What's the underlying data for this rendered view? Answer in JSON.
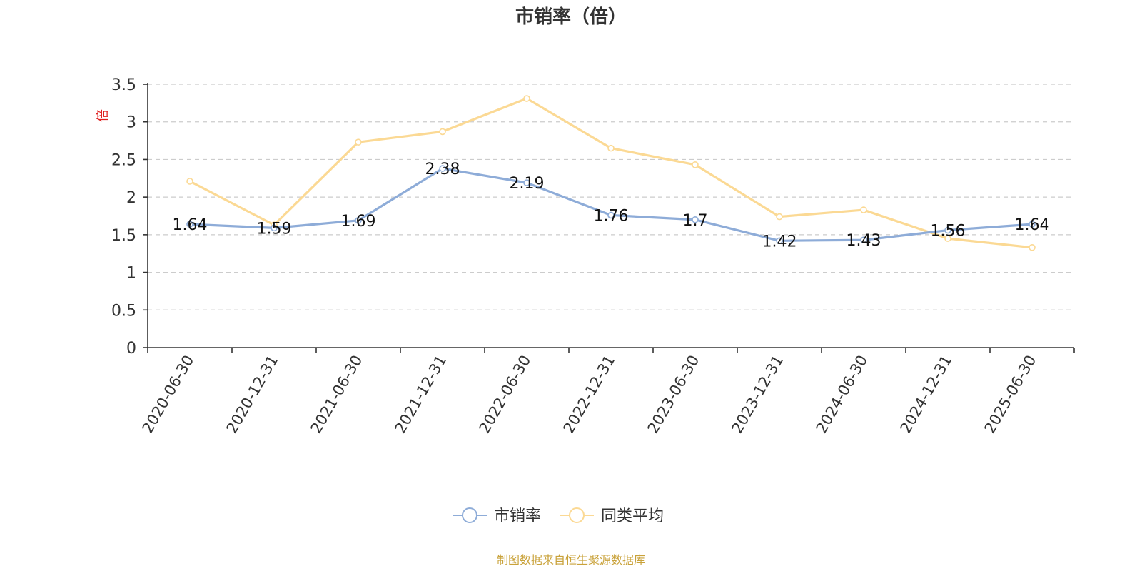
{
  "chart_data": {
    "type": "line",
    "title": "市销率（倍）",
    "ylabel": "倍",
    "ylim": [
      0,
      3.5
    ],
    "yticks": [
      "0",
      "0.5",
      "1",
      "1.5",
      "2",
      "2.5",
      "3",
      "3.5"
    ],
    "grid": true,
    "legend_position": "bottom-center",
    "categories": [
      "2020-06-30",
      "2020-12-31",
      "2021-06-30",
      "2021-12-31",
      "2022-06-30",
      "2022-12-31",
      "2023-06-30",
      "2023-12-31",
      "2024-06-30",
      "2024-12-31",
      "2025-06-30"
    ],
    "series": [
      {
        "name": "市销率",
        "color": "#8eacd8",
        "values": [
          1.64,
          1.59,
          1.69,
          2.38,
          2.19,
          1.76,
          1.7,
          1.42,
          1.43,
          1.56,
          1.64
        ],
        "labels": [
          "1.64",
          "1.59",
          "1.69",
          "2.38",
          "2.19",
          "1.76",
          "1.7",
          "1.42",
          "1.43",
          "1.56",
          "1.64"
        ]
      },
      {
        "name": "同类平均",
        "color": "#fbd994",
        "values": [
          2.21,
          1.63,
          2.73,
          2.87,
          3.31,
          2.65,
          2.43,
          1.74,
          1.83,
          1.45,
          1.33
        ]
      }
    ]
  },
  "source_note": "制图数据来自恒生聚源数据库"
}
